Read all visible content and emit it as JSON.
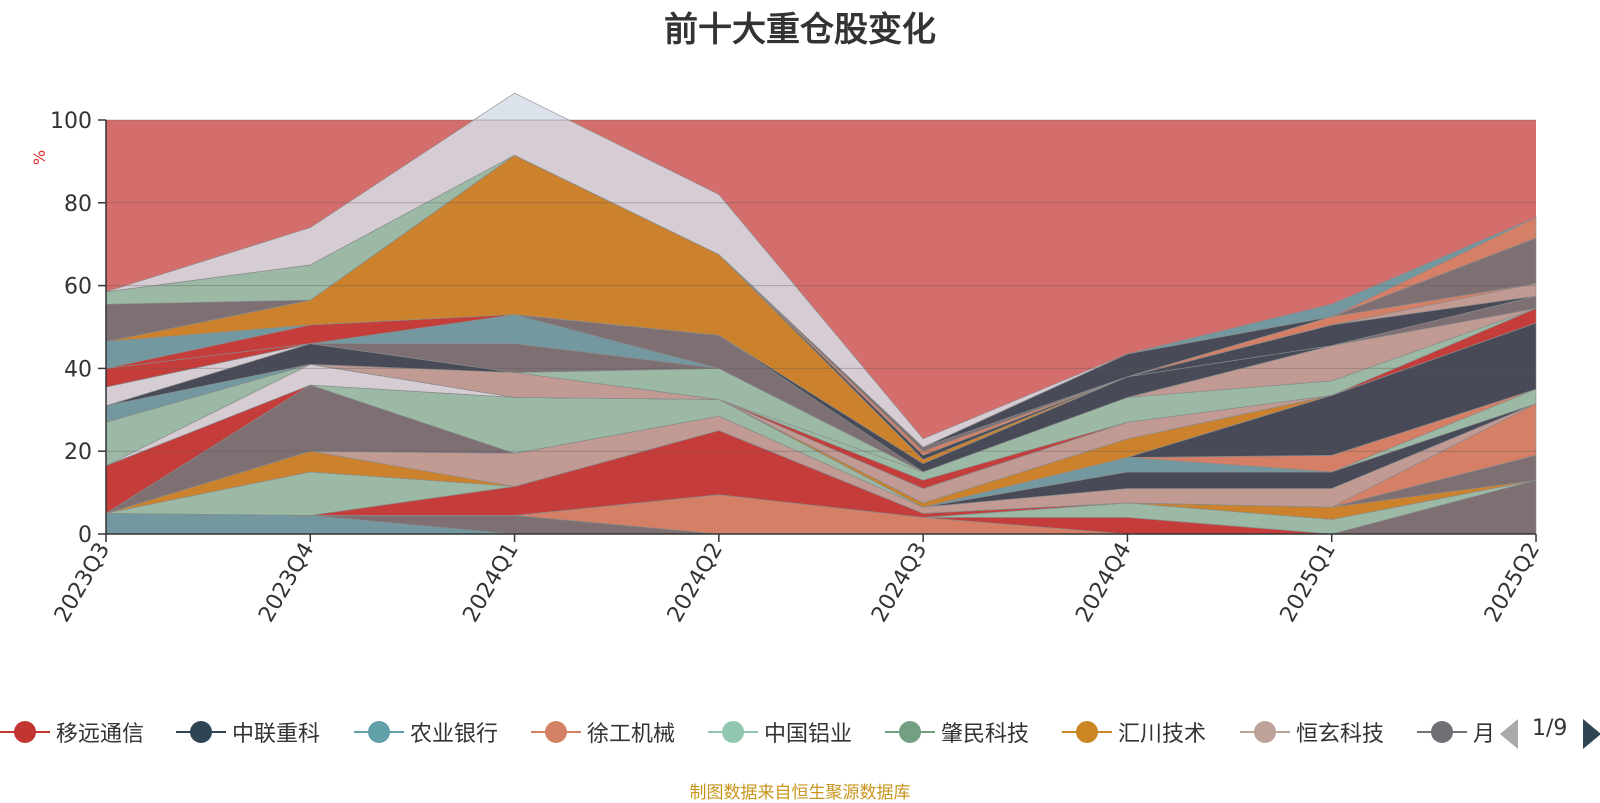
{
  "chart_data": {
    "type": "area",
    "stacked": true,
    "title": "前十大重仓股变化",
    "unit_label": "%",
    "xlabel": "",
    "ylabel": "",
    "ylim": [
      0,
      100
    ],
    "yticks": [
      0,
      20,
      40,
      60,
      80,
      100
    ],
    "grid": true,
    "legend_position": "bottom",
    "legend_page": "1/9",
    "categories": [
      "2023Q3",
      "2023Q4",
      "2024Q1",
      "2024Q2",
      "2024Q3",
      "2024Q4",
      "2025Q1",
      "2025Q2"
    ],
    "series": [
      {
        "name": "",
        "color": "#61a0a8",
        "values": [
          5,
          4.5,
          0,
          0,
          0,
          0,
          0,
          0
        ]
      },
      {
        "name": "",
        "color": "#6e7074",
        "values": [
          0,
          0,
          4.5,
          0,
          0,
          0,
          0,
          13
        ]
      },
      {
        "name": "",
        "color": "#d48265",
        "values": [
          0,
          0,
          0,
          9.5,
          4,
          0,
          0,
          0
        ]
      },
      {
        "name": "",
        "color": "#c23531",
        "values": [
          0,
          0,
          0,
          0,
          0,
          4,
          0,
          0
        ]
      },
      {
        "name": "",
        "color": "#91c7ae",
        "values": [
          0,
          0,
          0,
          0,
          0,
          3.5,
          3.5,
          0
        ]
      },
      {
        "name": "",
        "color": "#ca8622",
        "values": [
          0,
          0,
          0,
          0,
          0,
          0,
          3,
          0
        ]
      },
      {
        "name": "",
        "color": "#6e7074",
        "values": [
          0,
          0,
          0,
          0,
          0,
          0,
          0,
          6
        ]
      },
      {
        "name": "",
        "color": "#c23531",
        "values": [
          0,
          0,
          7,
          15.5,
          1,
          0,
          0,
          0
        ]
      },
      {
        "name": "",
        "color": "#d48265",
        "values": [
          0,
          0,
          0,
          0,
          0,
          0,
          0,
          12.5
        ]
      },
      {
        "name": "",
        "color": "#91c7ae",
        "values": [
          0,
          10.5,
          0,
          0,
          0,
          0,
          0,
          0
        ]
      },
      {
        "name": "",
        "color": "#ca8622",
        "values": [
          0,
          5,
          0,
          0,
          0,
          0,
          0,
          0
        ]
      },
      {
        "name": "",
        "color": "#bda29a",
        "values": [
          0,
          0,
          8,
          3.5,
          1.5,
          3.5,
          4.5,
          0
        ]
      },
      {
        "name": "",
        "color": "#2f4554",
        "values": [
          0,
          0,
          0,
          0,
          0,
          4,
          4,
          0
        ]
      },
      {
        "name": "",
        "color": "#91c7ae",
        "values": [
          0,
          0,
          0,
          0,
          0,
          0,
          0,
          3.5
        ]
      },
      {
        "name": "",
        "color": "#6e7074",
        "values": [
          0,
          16,
          0,
          0,
          0,
          0,
          0,
          0
        ]
      },
      {
        "name": "",
        "color": "#61a0a8",
        "values": [
          0,
          0,
          0,
          0,
          0,
          3.5,
          0,
          0
        ]
      },
      {
        "name": "",
        "color": "#d48265",
        "values": [
          0,
          0,
          0,
          0,
          0,
          0,
          4,
          0
        ]
      },
      {
        "name": "",
        "color": "#c23531",
        "values": [
          11.5,
          0,
          0,
          0,
          0,
          0,
          0,
          0
        ]
      },
      {
        "name": "",
        "color": "#91c7ae",
        "values": [
          0,
          0,
          13.5,
          4,
          0,
          0,
          0,
          0
        ]
      },
      {
        "name": "",
        "color": "#2f4554",
        "values": [
          0,
          0,
          0,
          0,
          0,
          0,
          14.5,
          16
        ]
      },
      {
        "name": "",
        "color": "#ca8622",
        "values": [
          0,
          0,
          0,
          0,
          1,
          4.5,
          0,
          0
        ]
      },
      {
        "name": "",
        "color": "#d6dde6",
        "values": [
          0,
          5,
          0,
          0,
          0,
          0,
          0,
          0
        ]
      },
      {
        "name": "",
        "color": "#91c7ae",
        "values": [
          10.5,
          0,
          0,
          0,
          0,
          0,
          0,
          0
        ]
      },
      {
        "name": "",
        "color": "#bda29a",
        "values": [
          0,
          0,
          0,
          0,
          3.5,
          4,
          0,
          0
        ]
      },
      {
        "name": "",
        "color": "#c23531",
        "values": [
          0,
          0,
          0,
          0,
          0,
          0,
          0,
          3.5
        ]
      },
      {
        "name": "",
        "color": "#61a0a8",
        "values": [
          4,
          0,
          0,
          0,
          0,
          0,
          0,
          0
        ]
      },
      {
        "name": "",
        "color": "#bda29a",
        "values": [
          0,
          0,
          6,
          0,
          0,
          0,
          0,
          0
        ]
      },
      {
        "name": "",
        "color": "#2f4554",
        "values": [
          0,
          5,
          0,
          0,
          0,
          0,
          0,
          0
        ]
      },
      {
        "name": "",
        "color": "#c23531",
        "values": [
          0,
          0,
          0,
          0,
          2,
          0,
          0,
          0
        ]
      },
      {
        "name": "",
        "color": "#91c7ae",
        "values": [
          0,
          0,
          0,
          0,
          2,
          6,
          3.5,
          0
        ]
      },
      {
        "name": "",
        "color": "#91c7ae",
        "values": [
          0,
          0,
          0,
          7.5,
          0,
          0,
          0,
          0
        ]
      },
      {
        "name": "",
        "color": "#d6dde6",
        "values": [
          4.5,
          0,
          0,
          0,
          0,
          0,
          0,
          0
        ]
      },
      {
        "name": "",
        "color": "#6e7074",
        "values": [
          0,
          0,
          7,
          0,
          0,
          0,
          0,
          0
        ]
      },
      {
        "name": "",
        "color": "#bda29a",
        "values": [
          0,
          0,
          0,
          0,
          0,
          0,
          8.5,
          0
        ]
      },
      {
        "name": "",
        "color": "#61a0a8",
        "values": [
          0,
          0,
          7,
          0,
          0,
          0,
          0,
          0
        ]
      },
      {
        "name": "",
        "color": "#c23531",
        "values": [
          4.5,
          0,
          0,
          0,
          0,
          0,
          0,
          0
        ]
      },
      {
        "name": "",
        "color": "#6e7074",
        "values": [
          0,
          0,
          0,
          8,
          0,
          0,
          0,
          3
        ]
      },
      {
        "name": "",
        "color": "#2f4554",
        "values": [
          0,
          0,
          0,
          0,
          2,
          5,
          0,
          0
        ]
      },
      {
        "name": "",
        "color": "#c23531",
        "values": [
          0,
          4.5,
          0,
          0,
          0,
          0,
          0,
          0
        ]
      },
      {
        "name": "",
        "color": "#61a0a8",
        "values": [
          6.5,
          0,
          0,
          0,
          0,
          0,
          0,
          0
        ]
      },
      {
        "name": "",
        "color": "#ca8622",
        "values": [
          0,
          6,
          38.5,
          19.5,
          1,
          0,
          0,
          0
        ]
      },
      {
        "name": "",
        "color": "#2f4554",
        "values": [
          0,
          0,
          0,
          0,
          1,
          0,
          5,
          0
        ]
      },
      {
        "name": "",
        "color": "#bda29a",
        "values": [
          0,
          0,
          0,
          0,
          0,
          0,
          0,
          3
        ]
      },
      {
        "name": "",
        "color": "#d48265",
        "values": [
          0,
          0,
          0,
          0,
          1,
          0,
          2,
          0
        ]
      },
      {
        "name": "",
        "color": "#6e7074",
        "values": [
          0,
          0,
          0,
          0,
          1,
          0,
          0,
          0
        ]
      },
      {
        "name": "",
        "color": "#2f4554",
        "values": [
          0,
          0,
          0,
          0,
          0,
          5.5,
          0,
          0
        ]
      },
      {
        "name": "",
        "color": "#ca8622",
        "values": [
          0,
          0,
          0,
          0,
          0,
          0,
          0,
          0
        ]
      },
      {
        "name": "",
        "color": "#6e7074",
        "values": [
          9,
          0,
          0,
          0,
          0,
          0,
          0,
          11
        ]
      },
      {
        "name": "",
        "color": "#91c7ae",
        "values": [
          3,
          8.5,
          0,
          0,
          0,
          0,
          0,
          0
        ]
      },
      {
        "name": "",
        "color": "#d48265",
        "values": [
          0,
          0,
          0,
          0,
          0,
          0,
          0,
          5
        ]
      },
      {
        "name": "",
        "color": "#61a0a8",
        "values": [
          0,
          0,
          0,
          0,
          0,
          0,
          3,
          0
        ]
      },
      {
        "name": "",
        "color": "#d6dde6",
        "values": [
          0,
          9,
          15,
          14.5,
          2,
          0,
          0,
          0
        ]
      }
    ],
    "remainder_color": "#d46e6c"
  },
  "legend": [
    {
      "label": "移远通信",
      "color": "#c23531"
    },
    {
      "label": "中联重科",
      "color": "#2f4554"
    },
    {
      "label": "农业银行",
      "color": "#61a0a8"
    },
    {
      "label": "徐工机械",
      "color": "#d48265"
    },
    {
      "label": "中国铝业",
      "color": "#91c7ae"
    },
    {
      "label": "肇民科技",
      "color": "#749f83"
    },
    {
      "label": "汇川技术",
      "color": "#ca8622"
    },
    {
      "label": "恒玄科技",
      "color": "#bda29a"
    },
    {
      "label": "月",
      "color": "#6e7074"
    }
  ],
  "legend_page": "1/9",
  "source_note": "制图数据来自恒生聚源数据库"
}
